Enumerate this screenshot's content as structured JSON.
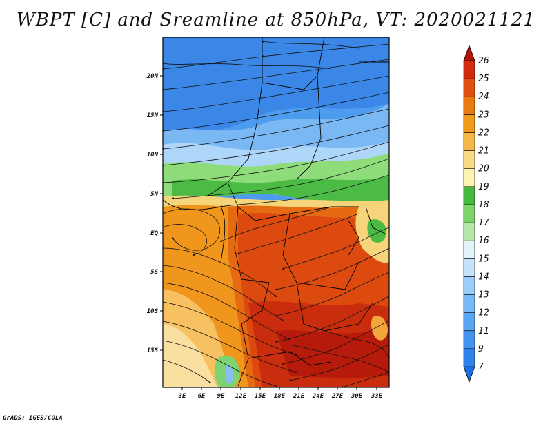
{
  "title": "WBPT [C] and Sreamline at 850hPa, VT: 2020021121",
  "credit": "GrADS: IGES/COLA",
  "map": {
    "lat_labels": [
      "20N",
      "15N",
      "10N",
      "5N",
      "EQ",
      "5S",
      "10S",
      "15S"
    ],
    "lon_labels": [
      "3E",
      "6E",
      "9E",
      "12E",
      "15E",
      "18E",
      "21E",
      "24E",
      "27E",
      "30E",
      "33E"
    ]
  },
  "colorbar": {
    "labels": [
      "7",
      "9",
      "11",
      "12",
      "13",
      "14",
      "15",
      "16",
      "17",
      "18",
      "19",
      "20",
      "21",
      "22",
      "23",
      "24",
      "25",
      "26"
    ],
    "colors": [
      "#1e6fe0",
      "#2f82ea",
      "#4494ef",
      "#5aa5f2",
      "#78b9f6",
      "#9ccdf8",
      "#c4e3fa",
      "#e4f3f8",
      "#b8e6a8",
      "#7fd36b",
      "#46b83f",
      "#fbf3b0",
      "#f7dc85",
      "#f4b84a",
      "#f29b1a",
      "#ea7a12",
      "#e25010",
      "#d02b0e",
      "#b61209"
    ]
  },
  "colors": {
    "wind_line": "#111111",
    "frame": "#000000",
    "land_boundary": "#000000"
  }
}
